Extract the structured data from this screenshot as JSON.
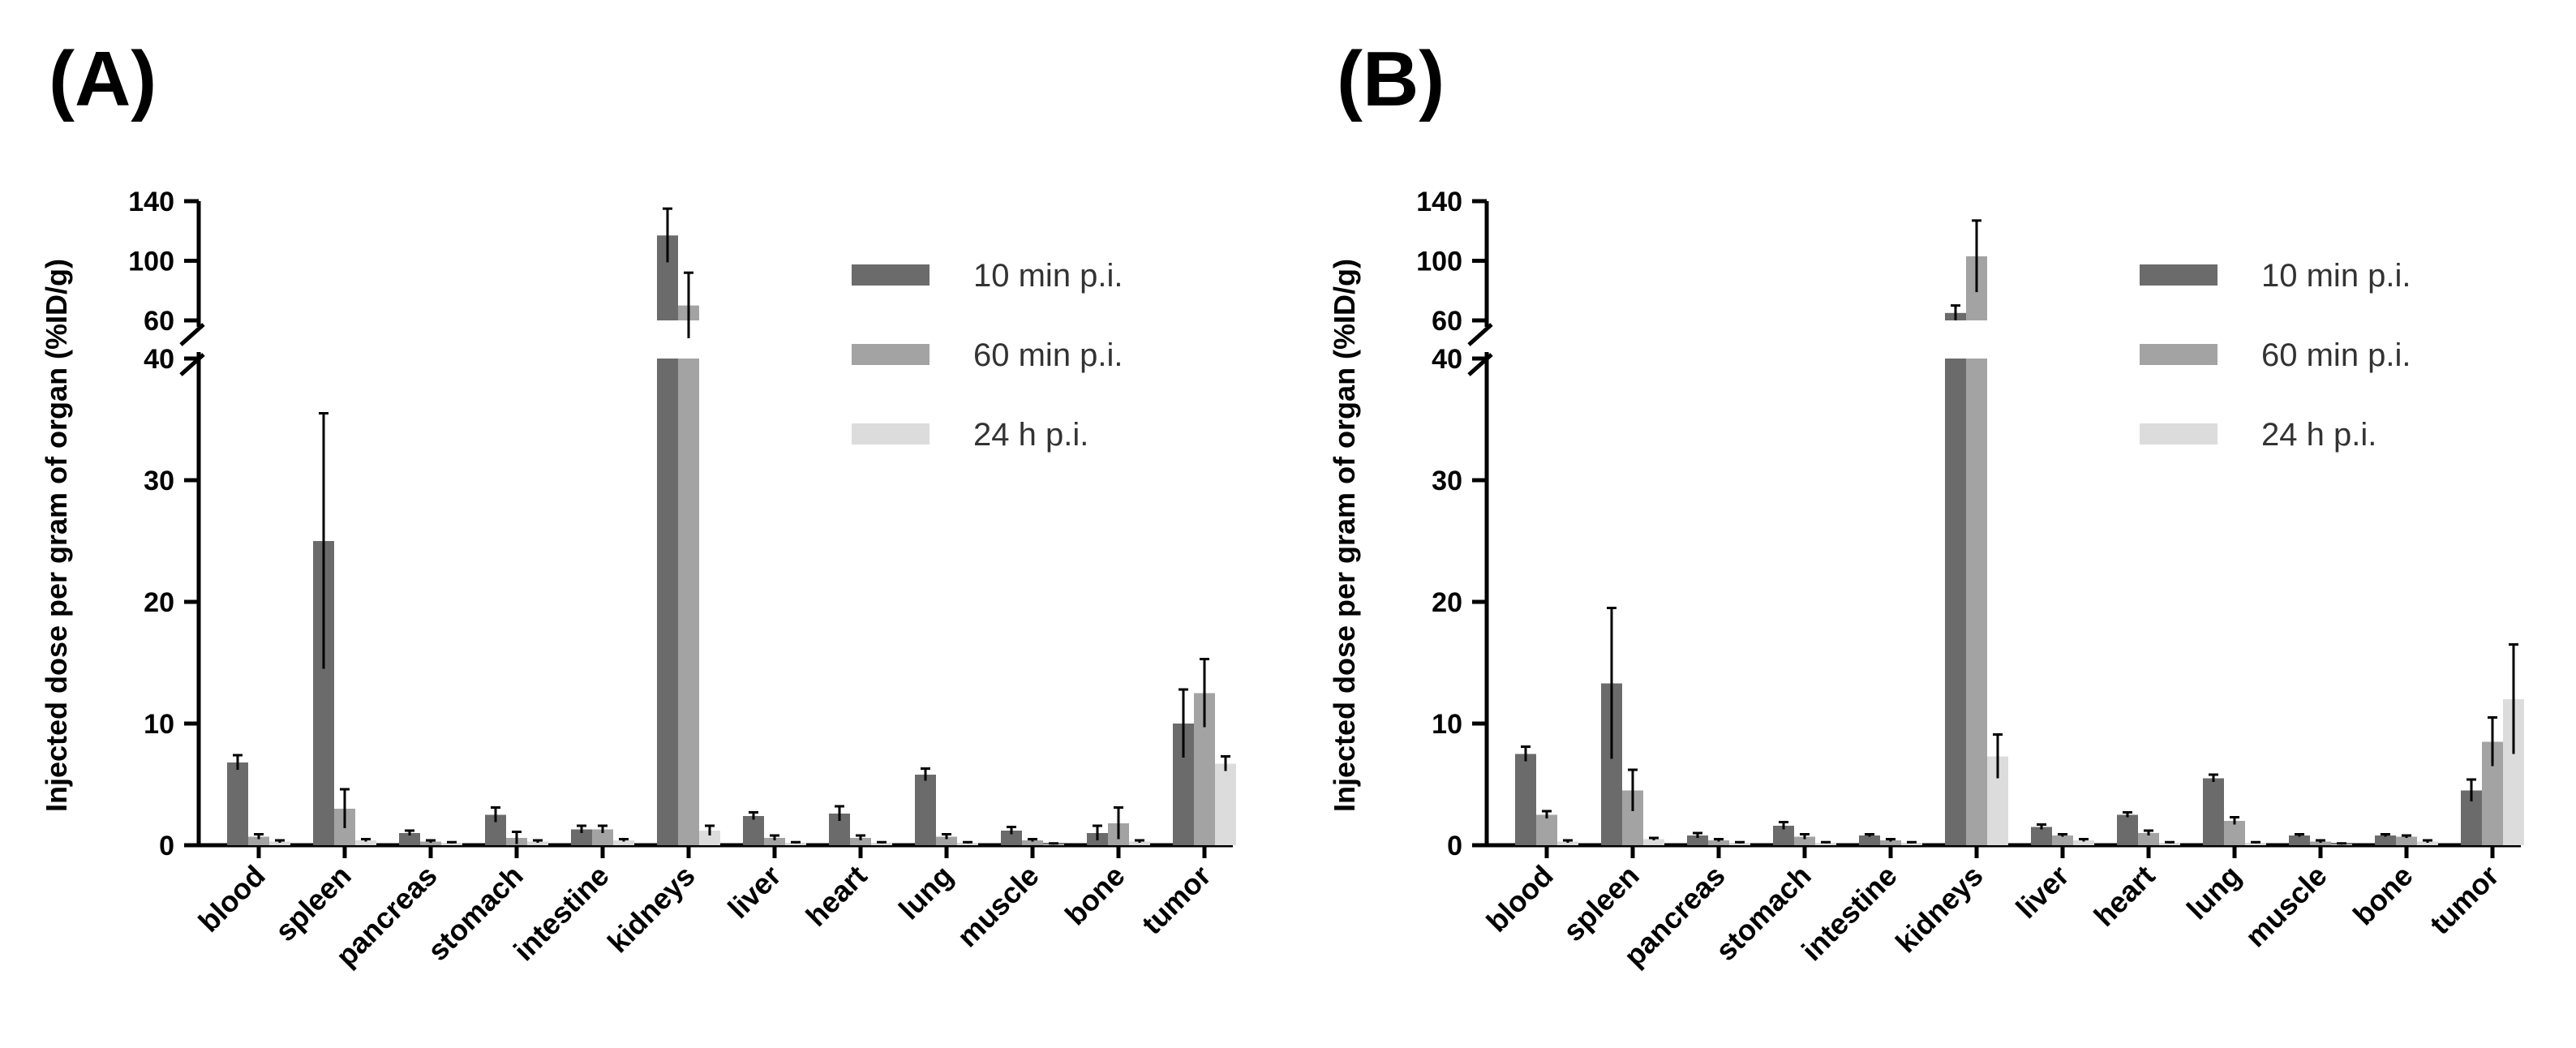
{
  "chart_data": [
    {
      "type": "bar",
      "panel_label": "(A)",
      "ylabel": "Injected dose per gram of organ (%ID/g)",
      "ylim": [
        0,
        140
      ],
      "axis_break": [
        40,
        60
      ],
      "y_ticks_lower": [
        "0",
        "10",
        "20",
        "30",
        "40"
      ],
      "y_ticks_upper": [
        "60",
        "100",
        "140"
      ],
      "categories": [
        "blood",
        "spleen",
        "pancreas",
        "stomach",
        "intestine",
        "kidneys",
        "liver",
        "heart",
        "lung",
        "muscle",
        "bone",
        "tumor"
      ],
      "series": [
        {
          "name": "10 min p.i.",
          "color": "#6b6b6b",
          "values": [
            6.8,
            25,
            1.0,
            2.5,
            1.3,
            117,
            2.4,
            2.6,
            5.8,
            1.2,
            1.0,
            10
          ],
          "errors": [
            0.6,
            10.5,
            0.2,
            0.6,
            0.3,
            18,
            0.3,
            0.6,
            0.5,
            0.3,
            0.6,
            2.8
          ]
        },
        {
          "name": "60 min p.i.",
          "color": "#a3a3a3",
          "values": [
            0.7,
            3.0,
            0.3,
            0.6,
            1.3,
            70,
            0.6,
            0.6,
            0.7,
            0.4,
            1.8,
            12.5
          ],
          "errors": [
            0.2,
            1.6,
            0.1,
            0.5,
            0.3,
            22,
            0.2,
            0.2,
            0.2,
            0.1,
            1.3,
            2.8
          ]
        },
        {
          "name": "24 h p.i.",
          "color": "#dcdcdc",
          "values": [
            0.3,
            0.4,
            0.2,
            0.3,
            0.4,
            1.2,
            0.2,
            0.2,
            0.2,
            0.1,
            0.3,
            6.7
          ],
          "errors": [
            0.1,
            0.1,
            0.05,
            0.1,
            0.1,
            0.4,
            0.05,
            0.05,
            0.05,
            0.05,
            0.1,
            0.6
          ]
        }
      ]
    },
    {
      "type": "bar",
      "panel_label": "(B)",
      "ylabel": "Injected dose per gram of organ (%ID/g)",
      "ylim": [
        0,
        140
      ],
      "axis_break": [
        40,
        60
      ],
      "y_ticks_lower": [
        "0",
        "10",
        "20",
        "30",
        "40"
      ],
      "y_ticks_upper": [
        "60",
        "100",
        "140"
      ],
      "categories": [
        "blood",
        "spleen",
        "pancreas",
        "stomach",
        "intestine",
        "kidneys",
        "liver",
        "heart",
        "lung",
        "muscle",
        "bone",
        "tumor"
      ],
      "series": [
        {
          "name": "10 min p.i.",
          "color": "#6b6b6b",
          "values": [
            7.5,
            13.3,
            0.8,
            1.6,
            0.8,
            65,
            1.5,
            2.5,
            5.5,
            0.8,
            0.8,
            4.5
          ],
          "errors": [
            0.6,
            6.2,
            0.2,
            0.3,
            0.1,
            5,
            0.2,
            0.2,
            0.3,
            0.1,
            0.1,
            0.9
          ]
        },
        {
          "name": "60 min p.i.",
          "color": "#a3a3a3",
          "values": [
            2.5,
            4.5,
            0.4,
            0.7,
            0.4,
            103,
            0.8,
            1.0,
            2.0,
            0.3,
            0.7,
            8.5
          ],
          "errors": [
            0.3,
            1.7,
            0.1,
            0.2,
            0.1,
            24,
            0.1,
            0.2,
            0.3,
            0.1,
            0.1,
            2.0
          ]
        },
        {
          "name": "24 h p.i.",
          "color": "#dcdcdc",
          "values": [
            0.3,
            0.5,
            0.2,
            0.2,
            0.2,
            7.3,
            0.4,
            0.2,
            0.2,
            0.1,
            0.3,
            12
          ],
          "errors": [
            0.1,
            0.1,
            0.05,
            0.05,
            0.05,
            1.8,
            0.1,
            0.05,
            0.05,
            0.05,
            0.1,
            4.5
          ]
        }
      ]
    }
  ]
}
